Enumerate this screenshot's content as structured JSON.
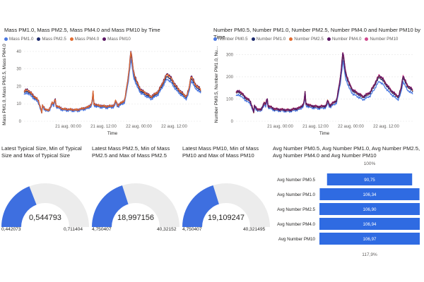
{
  "colors": {
    "blue": "#4a78e2",
    "orange": "#e06b2f",
    "navy": "#1c2a6c",
    "purple": "#5b1763",
    "pink": "#d04a8e",
    "gauge_fill": "#3e6fe0",
    "gauge_bg": "#ececec",
    "bar": "#2f6be2"
  },
  "chart_data": [
    {
      "type": "line",
      "title": "Mass PM1.0, Mass PM2.5, Mass PM4.0 and Mass PM10 by Time",
      "xlabel": "Time",
      "ylabel": "Mass PM1.0, Mass PM2.5, Mass PM4.0",
      "x_ticks": [
        "21 aug. 00:00",
        "21 aug. 12:00",
        "22 aug. 00:00",
        "22 aug. 12:00"
      ],
      "y_ticks": [
        0,
        10,
        20,
        30,
        40
      ],
      "ylim": [
        0,
        42
      ],
      "legend_position": "top-left",
      "series": [
        {
          "name": "Mass PM1.0",
          "color": "#4a78e2"
        },
        {
          "name": "Mass PM2.5",
          "color": "#1c2a6c"
        },
        {
          "name": "Mass PM4.0",
          "color": "#e06b2f"
        },
        {
          "name": "Mass PM10",
          "color": "#5b1763"
        }
      ],
      "profile": [
        [
          0,
          17
        ],
        [
          0.02,
          18
        ],
        [
          0.05,
          15
        ],
        [
          0.08,
          12
        ],
        [
          0.09,
          9
        ],
        [
          0.1,
          5
        ],
        [
          0.105,
          9
        ],
        [
          0.12,
          7
        ],
        [
          0.14,
          6
        ],
        [
          0.16,
          11
        ],
        [
          0.17,
          9
        ],
        [
          0.175,
          15
        ],
        [
          0.18,
          9
        ],
        [
          0.22,
          7
        ],
        [
          0.3,
          6.5
        ],
        [
          0.36,
          8
        ],
        [
          0.385,
          10
        ],
        [
          0.39,
          18
        ],
        [
          0.395,
          10
        ],
        [
          0.42,
          9
        ],
        [
          0.47,
          8.5
        ],
        [
          0.51,
          9
        ],
        [
          0.52,
          12
        ],
        [
          0.53,
          9
        ],
        [
          0.57,
          12
        ],
        [
          0.59,
          25
        ],
        [
          0.605,
          40
        ],
        [
          0.62,
          28
        ],
        [
          0.64,
          22
        ],
        [
          0.66,
          18
        ],
        [
          0.72,
          14
        ],
        [
          0.76,
          17
        ],
        [
          0.79,
          23
        ],
        [
          0.81,
          27
        ],
        [
          0.83,
          25
        ],
        [
          0.86,
          20
        ],
        [
          0.89,
          16.5
        ],
        [
          0.92,
          14
        ],
        [
          0.935,
          19
        ],
        [
          0.945,
          26
        ],
        [
          0.955,
          24
        ],
        [
          0.97,
          21
        ],
        [
          1.0,
          18
        ]
      ]
    },
    {
      "type": "line",
      "title": "Number PM0.5, Number PM1.0, Number PM2.5, Number PM4.0 and Number PM10 by Time",
      "xlabel": "Time",
      "ylabel": "Number PM0.5, Number PM1.0, Nu...",
      "x_ticks": [
        "21 aug. 00:00",
        "21 aug. 12:00",
        "22 aug. 00:00",
        "22 aug. 12:00"
      ],
      "y_ticks": [
        0,
        100,
        200,
        300
      ],
      "ylim": [
        0,
        330
      ],
      "legend_position": "top-left",
      "series": [
        {
          "name": "Number PM0.5",
          "color": "#4a78e2"
        },
        {
          "name": "Number PM1.0",
          "color": "#1c2a6c"
        },
        {
          "name": "Number PM2.5",
          "color": "#e06b2f"
        },
        {
          "name": "Number PM4.0",
          "color": "#5b1763"
        },
        {
          "name": "Number PM10",
          "color": "#d04a8e"
        }
      ],
      "profile": [
        [
          0,
          130
        ],
        [
          0.02,
          135
        ],
        [
          0.05,
          110
        ],
        [
          0.08,
          90
        ],
        [
          0.09,
          70
        ],
        [
          0.1,
          40
        ],
        [
          0.105,
          70
        ],
        [
          0.12,
          55
        ],
        [
          0.14,
          50
        ],
        [
          0.16,
          85
        ],
        [
          0.17,
          70
        ],
        [
          0.175,
          120
        ],
        [
          0.18,
          70
        ],
        [
          0.22,
          55
        ],
        [
          0.3,
          50
        ],
        [
          0.36,
          60
        ],
        [
          0.385,
          80
        ],
        [
          0.39,
          140
        ],
        [
          0.395,
          80
        ],
        [
          0.42,
          70
        ],
        [
          0.47,
          65
        ],
        [
          0.51,
          70
        ],
        [
          0.52,
          95
        ],
        [
          0.53,
          70
        ],
        [
          0.57,
          95
        ],
        [
          0.59,
          190
        ],
        [
          0.605,
          310
        ],
        [
          0.62,
          220
        ],
        [
          0.64,
          170
        ],
        [
          0.66,
          140
        ],
        [
          0.72,
          110
        ],
        [
          0.76,
          130
        ],
        [
          0.79,
          175
        ],
        [
          0.81,
          205
        ],
        [
          0.83,
          190
        ],
        [
          0.86,
          155
        ],
        [
          0.89,
          128
        ],
        [
          0.92,
          110
        ],
        [
          0.935,
          150
        ],
        [
          0.945,
          205
        ],
        [
          0.955,
          185
        ],
        [
          0.97,
          160
        ],
        [
          1.0,
          140
        ]
      ]
    },
    {
      "type": "gauge",
      "title": "Latest Typical Size, Min of Typical Size and Max of Typical Size",
      "value": 0.544793,
      "min": 0.442073,
      "max": 0.711404,
      "value_label": "0,544793",
      "min_label": "0,442073",
      "max_label": "0,711404"
    },
    {
      "type": "gauge",
      "title": "Latest Mass PM2.5, Min of Mass PM2.5 and Max of Mass PM2.5",
      "value": 18.997156,
      "min": 4.750407,
      "max": 40.32152,
      "value_label": "18,997156",
      "min_label": "4,750407",
      "max_label": "40,32152"
    },
    {
      "type": "gauge",
      "title": "Latest Mass PM10, Min of Mass PM10 and Max of Mass PM10",
      "value": 19.109247,
      "min": 4.750407,
      "max": 40.321495,
      "value_label": "19,109247",
      "min_label": "4,750407",
      "max_label": "40,321495"
    },
    {
      "type": "bar",
      "title": "Avg Number PM0.5, Avg Number PM1.0, Avg Number PM2.5, Avg Number PM4.0 and Avg Number PM10",
      "categories": [
        "Avg Number PM0.5",
        "Avg Number PM1.0",
        "Avg Number PM2.5",
        "Avg Number PM4.0",
        "Avg Number PM10"
      ],
      "values": [
        90.75,
        106.34,
        106.9,
        106.94,
        106.97
      ],
      "value_labels": [
        "90,75",
        "106,34",
        "106,90",
        "106,94",
        "106,97"
      ],
      "top_label": "100%",
      "bottom_label": "117,9%"
    }
  ]
}
